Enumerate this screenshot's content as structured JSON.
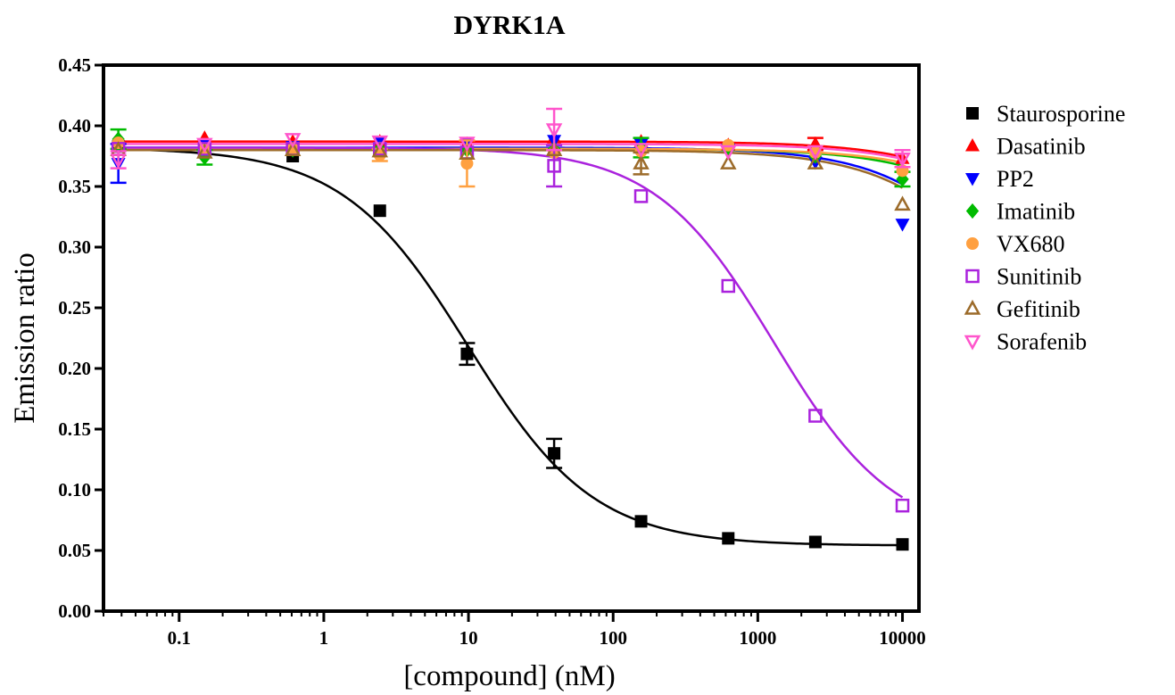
{
  "chart_data": {
    "type": "scatter",
    "title": "DYRK1A",
    "xlabel": "[compound] (nM)",
    "ylabel": "Emission ratio",
    "x_scale": "log",
    "xlim": [
      0.03,
      13000
    ],
    "ylim": [
      0,
      0.45
    ],
    "x_ticks": [
      0.1,
      1,
      10,
      100,
      1000,
      10000
    ],
    "x_tick_labels": [
      "0.1",
      "1",
      "10",
      "100",
      "1000",
      "10000"
    ],
    "y_ticks": [
      0,
      0.05,
      0.1,
      0.15,
      0.2,
      0.25,
      0.3,
      0.35,
      0.4,
      0.45
    ],
    "y_tick_labels": [
      "0.00",
      "0.05",
      "0.10",
      "0.15",
      "0.20",
      "0.25",
      "0.30",
      "0.35",
      "0.40",
      "0.45"
    ],
    "grid": false,
    "legend_position": "right",
    "x": [
      0.038,
      0.15,
      0.61,
      2.44,
      9.77,
      39.1,
      156,
      625,
      2500,
      10000
    ],
    "series": [
      {
        "name": "Staurosporine",
        "marker": "square-filled",
        "color": "#000000",
        "values": [
          0.383,
          0.381,
          0.375,
          0.33,
          0.212,
          0.13,
          0.074,
          0.06,
          0.057,
          0.055
        ],
        "errors": [
          0,
          0,
          0,
          0,
          0.009,
          0.012,
          0,
          0,
          0,
          0
        ],
        "fit": {
          "top": 0.382,
          "bottom": 0.054,
          "ic50": 10,
          "hill": 1.0
        }
      },
      {
        "name": "Dasatinib",
        "marker": "triangle-up-filled",
        "color": "#ff0000",
        "values": [
          0.387,
          0.39,
          0.387,
          0.387,
          0.385,
          0.39,
          0.387,
          0.384,
          0.385,
          0.373
        ],
        "errors": [
          0,
          0,
          0,
          0,
          0,
          0,
          0,
          0,
          0.005,
          0
        ],
        "fit": {
          "top": 0.387,
          "bottom": 0.3,
          "ic50": 60000,
          "hill": 1.0
        }
      },
      {
        "name": "PP2",
        "marker": "triangle-down-filled",
        "color": "#0000ff",
        "values": [
          0.369,
          0.385,
          0.383,
          0.386,
          0.386,
          0.388,
          0.385,
          0.381,
          0.37,
          0.319
        ],
        "errors": [
          0.016,
          0,
          0,
          0,
          0,
          0,
          0,
          0,
          0,
          0
        ],
        "fit": {
          "top": 0.382,
          "bottom": 0.05,
          "ic50": 100000,
          "hill": 1.0
        }
      },
      {
        "name": "Imatinib",
        "marker": "diamond-filled",
        "color": "#00bb00",
        "values": [
          0.389,
          0.374,
          0.38,
          0.381,
          0.38,
          0.381,
          0.382,
          0.38,
          0.375,
          0.356
        ],
        "errors": [
          0.008,
          0.006,
          0,
          0,
          0,
          0,
          0.008,
          0,
          0,
          0.006
        ],
        "fit": {
          "top": 0.381,
          "bottom": 0.2,
          "ic50": 120000,
          "hill": 1.0
        }
      },
      {
        "name": "VX680",
        "marker": "circle-filled",
        "color": "#ffa040",
        "values": [
          0.386,
          0.381,
          0.381,
          0.376,
          0.369,
          0.378,
          0.379,
          0.384,
          0.378,
          0.363
        ],
        "errors": [
          0,
          0,
          0,
          0.005,
          0.019,
          0,
          0,
          0,
          0,
          0
        ],
        "fit": {
          "top": 0.381,
          "bottom": 0.2,
          "ic50": 150000,
          "hill": 1.0
        }
      },
      {
        "name": "Sunitinib",
        "marker": "square-open",
        "color": "#aa22dd",
        "values": [
          0.381,
          0.381,
          0.381,
          0.381,
          0.378,
          0.367,
          0.342,
          0.268,
          0.161,
          0.087
        ],
        "errors": [
          0,
          0,
          0,
          0,
          0,
          0.017,
          0,
          0,
          0,
          0
        ],
        "fit": {
          "top": 0.382,
          "bottom": 0.06,
          "ic50": 1300,
          "hill": 1.05
        }
      },
      {
        "name": "Gefitinib",
        "marker": "triangle-up-open",
        "color": "#9c6b2a",
        "values": [
          0.38,
          0.378,
          0.38,
          0.379,
          0.377,
          0.38,
          0.369,
          0.369,
          0.369,
          0.335
        ],
        "errors": [
          0,
          0,
          0,
          0,
          0,
          0,
          0.009,
          0,
          0,
          0
        ],
        "fit": {
          "top": 0.38,
          "bottom": 0.1,
          "ic50": 80000,
          "hill": 1.0
        }
      },
      {
        "name": "Sorafenib",
        "marker": "triangle-down-open",
        "color": "#ff55cc",
        "values": [
          0.372,
          0.385,
          0.389,
          0.387,
          0.386,
          0.397,
          0.381,
          0.379,
          0.379,
          0.373
        ],
        "errors": [
          0.007,
          0,
          0,
          0,
          0,
          0.017,
          0,
          0,
          0,
          0.007
        ],
        "fit": {
          "top": 0.385,
          "bottom": 0.25,
          "ic50": 100000,
          "hill": 1.0
        }
      }
    ]
  }
}
